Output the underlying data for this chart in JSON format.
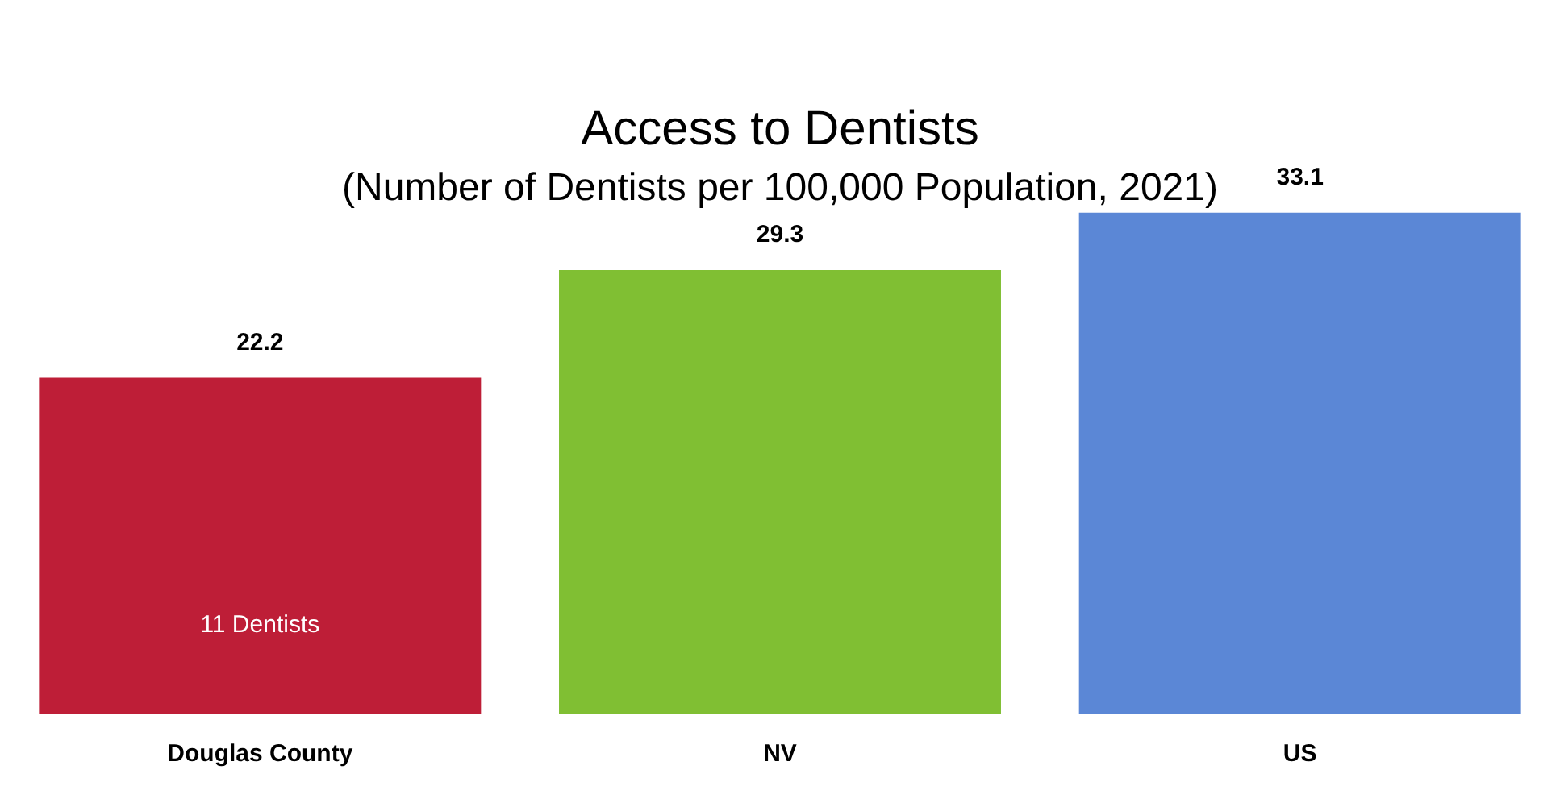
{
  "chart_data": {
    "type": "bar",
    "title": "Access to Dentists",
    "subtitle": "(Number of Dentists per 100,000 Population, 2021)",
    "categories": [
      "Douglas County",
      "NV",
      "US"
    ],
    "values": [
      22.2,
      29.3,
      33.1
    ],
    "colors": [
      "#be1e37",
      "#80bf33",
      "#5b87d6"
    ],
    "data_labels": true,
    "grid": false,
    "legend": false,
    "annotations": [
      "11 Dentists"
    ]
  }
}
